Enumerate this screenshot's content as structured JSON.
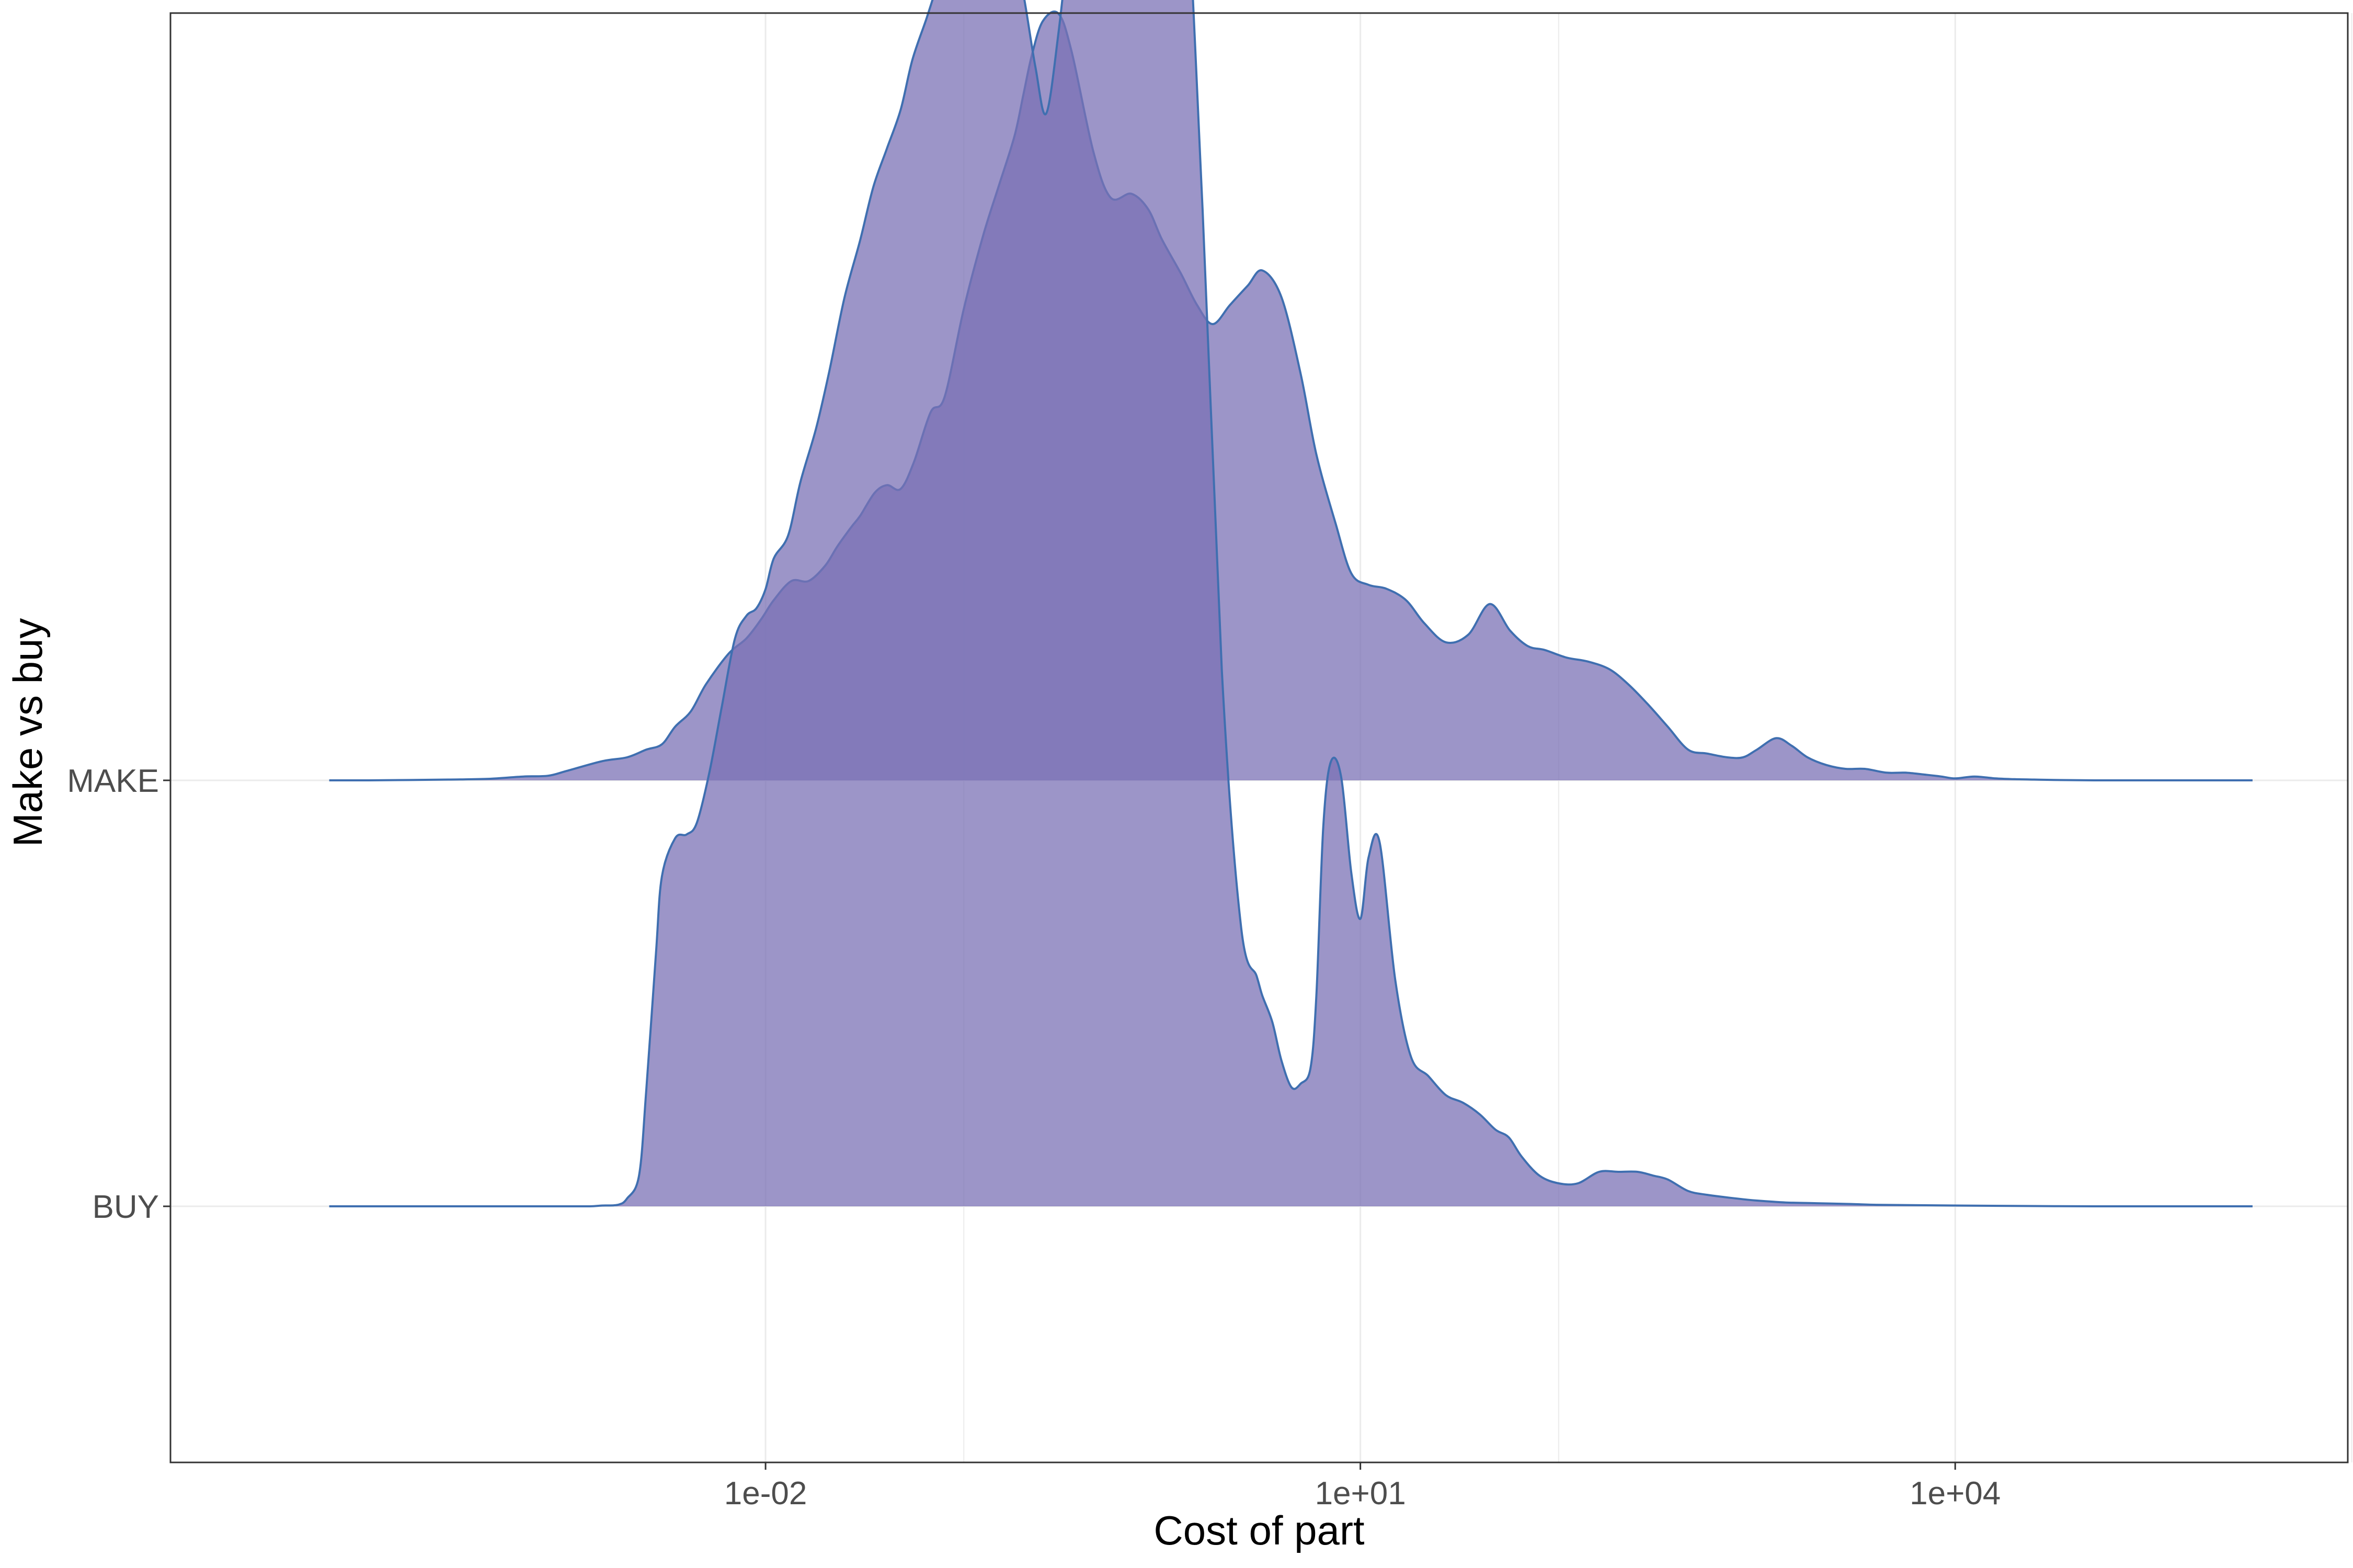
{
  "chart_data": {
    "type": "area",
    "subtype": "ridgeline-density",
    "xlabel": "Cost of part",
    "ylabel": "Make vs buy",
    "x_scale": "log10",
    "xlim": [
      3.16e-05,
      316227
    ],
    "x_ticks": [
      {
        "value": 0.01,
        "label": "1e-02"
      },
      {
        "value": 10,
        "label": "1e+01"
      },
      {
        "value": 10000,
        "label": "1e+04"
      }
    ],
    "x_minor_grid": [
      1e-05,
      0.1,
      100,
      1000000
    ],
    "categories": [
      "BUY",
      "MAKE"
    ],
    "grid": true,
    "fill_color": "#7b71b6",
    "fill_opacity": 0.75,
    "line_color": "#3f6fb0",
    "series": [
      {
        "name": "MAKE",
        "baseline_index": 1,
        "x": [
          6.3e-05,
          0.0001,
          0.00025,
          0.0004,
          0.0006,
          0.0008,
          0.001,
          0.0015,
          0.002,
          0.0025,
          0.003,
          0.0035,
          0.0042,
          0.005,
          0.0065,
          0.008,
          0.0095,
          0.011,
          0.0135,
          0.0165,
          0.02,
          0.023,
          0.027,
          0.03,
          0.0355,
          0.041,
          0.048,
          0.056,
          0.068,
          0.08,
          0.1,
          0.125,
          0.15,
          0.18,
          0.2,
          0.22,
          0.25,
          0.3,
          0.35,
          0.45,
          0.55,
          0.7,
          0.85,
          1.0,
          1.25,
          1.5,
          1.8,
          2.2,
          2.7,
          3.2,
          4.0,
          5.0,
          6.0,
          7.5,
          9.0,
          11,
          13.5,
          17,
          21,
          27,
          35,
          45,
          57,
          70,
          85,
          110,
          140,
          180,
          225,
          280,
          355,
          450,
          560,
          710,
          850,
          1000,
          1250,
          1500,
          1800,
          2240,
          2800,
          3500,
          4500,
          5600,
          7000,
          8500,
          10000,
          12500,
          16000,
          20000,
          25000,
          31600,
          50000,
          100000,
          316000
        ],
        "y": [
          0.0,
          0.0,
          0.002,
          0.004,
          0.01,
          0.012,
          0.025,
          0.05,
          0.06,
          0.08,
          0.094,
          0.14,
          0.18,
          0.25,
          0.33,
          0.37,
          0.42,
          0.47,
          0.52,
          0.52,
          0.56,
          0.61,
          0.66,
          0.69,
          0.75,
          0.77,
          0.76,
          0.83,
          0.96,
          1.0,
          1.23,
          1.42,
          1.55,
          1.68,
          1.79,
          1.89,
          1.98,
          2.0,
          1.9,
          1.64,
          1.52,
          1.53,
          1.49,
          1.41,
          1.32,
          1.24,
          1.19,
          1.24,
          1.29,
          1.33,
          1.26,
          1.06,
          0.85,
          0.67,
          0.54,
          0.51,
          0.5,
          0.47,
          0.41,
          0.36,
          0.38,
          0.46,
          0.39,
          0.35,
          0.34,
          0.32,
          0.31,
          0.29,
          0.25,
          0.2,
          0.14,
          0.08,
          0.07,
          0.06,
          0.06,
          0.08,
          0.11,
          0.09,
          0.06,
          0.04,
          0.03,
          0.03,
          0.02,
          0.02,
          0.015,
          0.01,
          0.005,
          0.01,
          0.005,
          0.003,
          0.002,
          0.001,
          0.0,
          0.0,
          0.0
        ]
      },
      {
        "name": "BUY",
        "baseline_index": 0,
        "x": [
          6.3e-05,
          0.0002,
          0.0005,
          0.001,
          0.0013,
          0.0015,
          0.0018,
          0.002,
          0.0023,
          0.0025,
          0.0028,
          0.003,
          0.0035,
          0.004,
          0.0045,
          0.0052,
          0.006,
          0.007,
          0.008,
          0.009,
          0.01,
          0.011,
          0.013,
          0.015,
          0.018,
          0.021,
          0.025,
          0.03,
          0.035,
          0.041,
          0.048,
          0.055,
          0.065,
          0.075,
          0.085,
          0.1,
          0.12,
          0.15,
          0.18,
          0.2,
          0.23,
          0.26,
          0.3,
          0.35,
          0.4,
          0.45,
          0.5,
          0.55,
          0.65,
          0.8,
          1.0,
          1.25,
          1.6,
          2.0,
          2.5,
          3.0,
          3.2,
          3.6,
          4.0,
          4.5,
          5.0,
          5.6,
          6.0,
          6.5,
          7.1,
          8.0,
          9.0,
          10.0,
          11.0,
          12.5,
          15,
          18,
          22,
          27,
          33,
          40,
          48,
          56,
          65,
          80,
          100,
          125,
          160,
          200,
          250,
          300,
          355,
          450,
          560,
          800,
          1000,
          1400,
          2000,
          3000,
          4000,
          6000,
          10000,
          20000,
          50000,
          100000,
          316000
        ],
        "y": [
          0.0,
          0.0,
          0.0,
          0.0,
          0.0,
          0.002,
          0.004,
          0.02,
          0.08,
          0.3,
          0.66,
          0.86,
          0.96,
          0.97,
          1.0,
          1.13,
          1.3,
          1.48,
          1.54,
          1.56,
          1.61,
          1.69,
          1.75,
          1.89,
          2.03,
          2.18,
          2.37,
          2.52,
          2.66,
          2.76,
          2.86,
          2.99,
          3.1,
          3.2,
          3.28,
          3.34,
          3.36,
          3.32,
          3.26,
          3.16,
          2.97,
          2.85,
          3.06,
          3.38,
          3.67,
          3.88,
          3.85,
          3.7,
          3.5,
          3.3,
          3.5,
          3.64,
          2.6,
          1.4,
          0.73,
          0.6,
          0.55,
          0.48,
          0.38,
          0.31,
          0.32,
          0.36,
          0.55,
          0.99,
          1.16,
          1.12,
          0.87,
          0.75,
          0.91,
          0.95,
          0.59,
          0.39,
          0.34,
          0.29,
          0.27,
          0.24,
          0.2,
          0.18,
          0.13,
          0.08,
          0.06,
          0.06,
          0.09,
          0.09,
          0.09,
          0.08,
          0.07,
          0.04,
          0.03,
          0.02,
          0.015,
          0.01,
          0.008,
          0.006,
          0.004,
          0.003,
          0.002,
          0.001,
          0.0,
          0.0,
          0.0
        ]
      }
    ]
  }
}
